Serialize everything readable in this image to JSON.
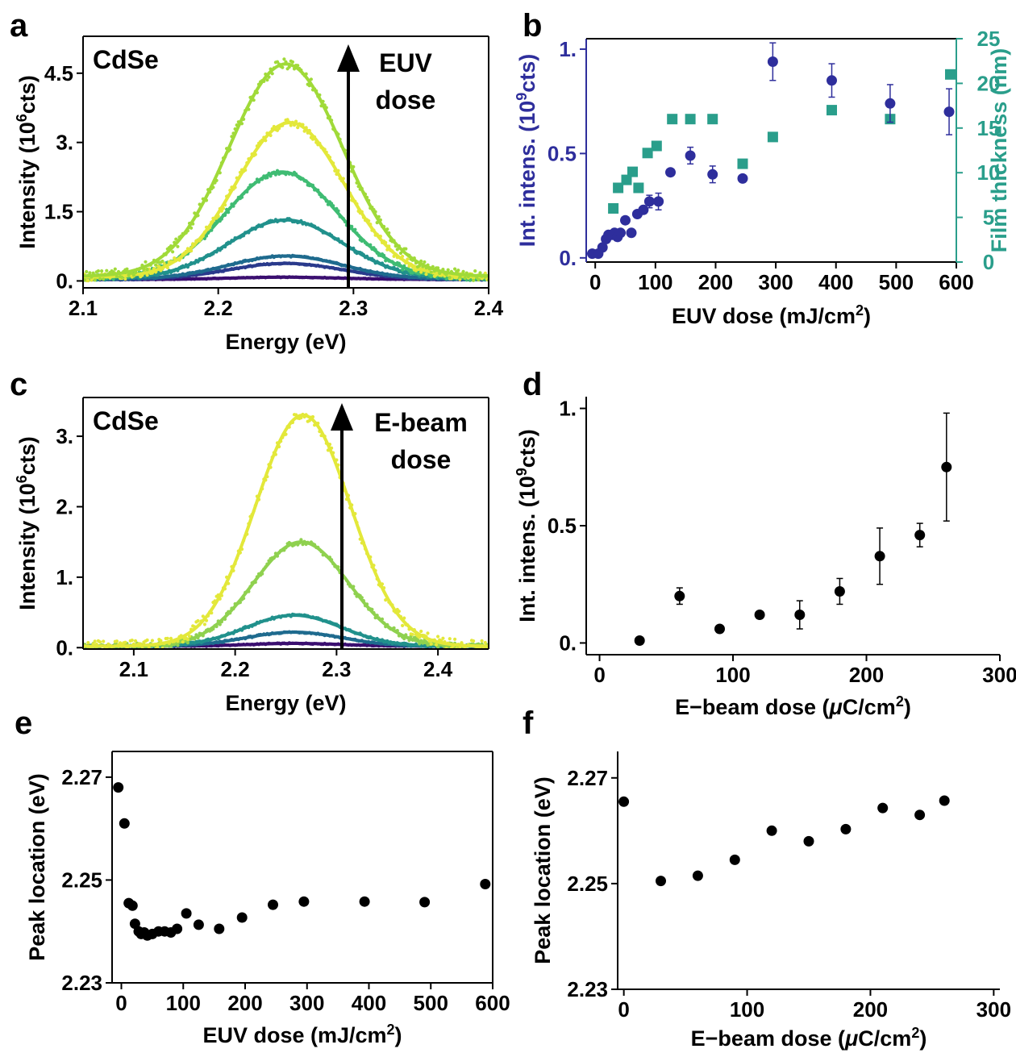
{
  "colors": {
    "axis": "#000000",
    "blue_series": "#2e2e9c",
    "teal_series": "#2a9e8b",
    "black_series": "#000000",
    "spectra_palette": [
      "#3b0f70",
      "#2a3a8c",
      "#1f6b8e",
      "#21918c",
      "#3fbc73",
      "#a0da39",
      "#e3e83a",
      "#8fd14f"
    ]
  },
  "panels": {
    "a": "a",
    "b": "b",
    "c": "c",
    "d": "d",
    "e": "e",
    "f": "f"
  },
  "chart_data": [
    {
      "id": "a",
      "type": "line",
      "annotation_material": "CdSe",
      "annotation_arrow": [
        "EUV",
        "dose"
      ],
      "xlabel": "Energy (eV)",
      "ylabel": "Intensity (10^6cts)",
      "ylabel_parts": {
        "pre": "Intensity (10",
        "sup": "6",
        "post": "cts)"
      },
      "xlim": [
        2.1,
        2.4
      ],
      "ylim": [
        -0.15,
        5.3
      ],
      "xticks": [
        2.1,
        2.2,
        2.3,
        2.4
      ],
      "xtick_labels": [
        "2.1",
        "2.2",
        "2.3",
        "2.4"
      ],
      "yticks": [
        0,
        1.5,
        3,
        4.5
      ],
      "ytick_labels": [
        "0.",
        "1.5",
        "3.",
        "4.5"
      ],
      "series": [
        {
          "color": "#3b0f70",
          "amplitude": 0.05,
          "center": 2.25,
          "sigma": 0.042,
          "baseline": 0.03
        },
        {
          "color": "#2a3a8c",
          "amplitude": 0.35,
          "center": 2.25,
          "sigma": 0.042,
          "baseline": 0.03
        },
        {
          "color": "#1f6b8e",
          "amplitude": 0.5,
          "center": 2.25,
          "sigma": 0.042,
          "baseline": 0.04
        },
        {
          "color": "#21918c",
          "amplitude": 1.27,
          "center": 2.25,
          "sigma": 0.042,
          "baseline": 0.05
        },
        {
          "color": "#3fbc73",
          "amplitude": 2.3,
          "center": 2.247,
          "sigma": 0.042,
          "baseline": 0.06
        },
        {
          "color": "#e3e83a",
          "amplitude": 3.35,
          "center": 2.253,
          "sigma": 0.04,
          "baseline": 0.08
        },
        {
          "color": "#a0da39",
          "amplitude": 4.6,
          "center": 2.25,
          "sigma": 0.042,
          "baseline": 0.1
        }
      ]
    },
    {
      "id": "b",
      "type": "scatter",
      "xlabel": "EUV dose (mJ/cm^2)",
      "xlabel_parts": {
        "pre": "EUV dose (mJ/cm",
        "sup": "2",
        "post": ")"
      },
      "ylabel": "Int. intens. (10^9cts)",
      "ylabel_parts": {
        "pre": "Int. intens. (10",
        "sup": "9",
        "post": "cts)"
      },
      "y2label": "Film thickness (nm)",
      "xlim": [
        -15,
        600
      ],
      "ylim": [
        -0.02,
        1.05
      ],
      "y2lim": [
        0,
        25
      ],
      "xticks": [
        0,
        100,
        200,
        300,
        400,
        500,
        600
      ],
      "xtick_labels": [
        "0",
        "100",
        "200",
        "300",
        "400",
        "500",
        "600"
      ],
      "yticks": [
        0,
        0.5,
        1
      ],
      "ytick_labels": [
        "0.",
        "0.5",
        "1."
      ],
      "y2ticks": [
        0,
        5,
        10,
        15,
        20,
        25
      ],
      "y2tick_labels": [
        "0",
        "5",
        "10",
        "15",
        "20",
        "25"
      ],
      "intensity": {
        "x": [
          -5,
          5,
          12,
          18,
          22,
          28,
          32,
          37,
          42,
          50,
          60,
          70,
          80,
          90,
          105,
          125,
          158,
          195,
          245,
          295,
          393,
          490,
          588
        ],
        "y": [
          0.02,
          0.02,
          0.05,
          0.09,
          0.11,
          0.11,
          0.12,
          0.1,
          0.12,
          0.18,
          0.12,
          0.21,
          0.23,
          0.27,
          0.27,
          0.41,
          0.49,
          0.4,
          0.38,
          0.94,
          0.85,
          0.74,
          0.7
        ],
        "err": [
          0,
          0,
          0,
          0,
          0,
          0,
          0,
          0,
          0,
          0,
          0,
          0,
          0,
          0.03,
          0.04,
          0,
          0.04,
          0.04,
          0,
          0.09,
          0.08,
          0.09,
          0.11
        ]
      },
      "thickness": {
        "x": [
          30,
          38,
          52,
          62,
          72,
          87,
          102,
          128,
          158,
          195,
          245,
          295,
          393,
          490,
          590
        ],
        "y": [
          6,
          8.3,
          9.2,
          10.1,
          8.3,
          12.2,
          13,
          16,
          16,
          16,
          11,
          14,
          17,
          16,
          21
        ]
      }
    },
    {
      "id": "c",
      "type": "line",
      "annotation_material": "CdSe",
      "annotation_arrow": [
        "E-beam",
        "dose"
      ],
      "xlabel": "Energy (eV)",
      "ylabel": "Intensity (10^6cts)",
      "ylabel_parts": {
        "pre": "Intensity (10",
        "sup": "6",
        "post": "cts)"
      },
      "xlim": [
        2.05,
        2.45
      ],
      "ylim": [
        -0.02,
        3.55
      ],
      "xticks": [
        2.1,
        2.2,
        2.3,
        2.4
      ],
      "xtick_labels": [
        "2.1",
        "2.2",
        "2.3",
        "2.4"
      ],
      "yticks": [
        0,
        1,
        2,
        3
      ],
      "ytick_labels": [
        "0.",
        "1.",
        "2.",
        "3."
      ],
      "series": [
        {
          "color": "#3b0f70",
          "amplitude": 0.04,
          "center": 2.26,
          "sigma": 0.047,
          "baseline": 0.02
        },
        {
          "color": "#1f6b8e",
          "amplitude": 0.2,
          "center": 2.258,
          "sigma": 0.047,
          "baseline": 0.02
        },
        {
          "color": "#21918c",
          "amplitude": 0.44,
          "center": 2.258,
          "sigma": 0.047,
          "baseline": 0.02
        },
        {
          "color": "#8fd14f",
          "amplitude": 1.48,
          "center": 2.265,
          "sigma": 0.047,
          "baseline": 0.02
        },
        {
          "color": "#e3e83a",
          "amplitude": 3.28,
          "center": 2.267,
          "sigma": 0.047,
          "baseline": 0.02
        }
      ]
    },
    {
      "id": "d",
      "type": "scatter",
      "xlabel": "E-beam dose (μC/cm^2)",
      "xlabel_parts": {
        "pre": "E−beam dose (",
        "mu": "μ",
        "mid": "C/cm",
        "sup": "2",
        "post": ")"
      },
      "ylabel": "Int. intens. (10^9cts)",
      "ylabel_parts": {
        "pre": "Int. intens. (10",
        "sup": "9",
        "post": "cts)"
      },
      "xlim": [
        -10,
        300
      ],
      "ylim": [
        -0.05,
        1.05
      ],
      "xticks": [
        0,
        100,
        200,
        300
      ],
      "xtick_labels": [
        "0",
        "100",
        "200",
        "300"
      ],
      "yticks": [
        0,
        0.5,
        1
      ],
      "ytick_labels": [
        "0.",
        "0.5",
        "1."
      ],
      "x": [
        30,
        60,
        90,
        120,
        150,
        180,
        210,
        240,
        260
      ],
      "y": [
        0.01,
        0.2,
        0.06,
        0.12,
        0.12,
        0.22,
        0.37,
        0.46,
        0.75
      ],
      "err": [
        0,
        0.035,
        0,
        0.015,
        0.06,
        0.055,
        0.12,
        0.05,
        0.23
      ]
    },
    {
      "id": "e",
      "type": "scatter",
      "xlabel": "EUV dose (mJ/cm^2)",
      "xlabel_parts": {
        "pre": "EUV dose (mJ/cm",
        "sup": "2",
        "post": ")"
      },
      "ylabel": "Peak location (eV)",
      "xlim": [
        -15,
        600
      ],
      "ylim": [
        2.23,
        2.275
      ],
      "xticks": [
        0,
        100,
        200,
        300,
        400,
        500,
        600
      ],
      "xtick_labels": [
        "0",
        "100",
        "200",
        "300",
        "400",
        "500",
        "600"
      ],
      "yticks": [
        2.23,
        2.25,
        2.27
      ],
      "ytick_labels": [
        "2.23",
        "2.25",
        "2.27"
      ],
      "x": [
        -5,
        5,
        12,
        18,
        22,
        28,
        32,
        37,
        42,
        50,
        60,
        70,
        80,
        90,
        105,
        125,
        158,
        195,
        245,
        295,
        393,
        490,
        588
      ],
      "y": [
        2.268,
        2.261,
        2.2455,
        2.245,
        2.2415,
        2.24,
        2.2395,
        2.2398,
        2.2392,
        2.2395,
        2.24,
        2.24,
        2.2398,
        2.2405,
        2.2435,
        2.2413,
        2.2405,
        2.2427,
        2.2452,
        2.2458,
        2.2458,
        2.2457,
        2.2492
      ]
    },
    {
      "id": "f",
      "type": "scatter",
      "xlabel": "E-beam dose (μC/cm^2)",
      "xlabel_parts": {
        "pre": "E−beam dose (",
        "mu": "μ",
        "mid": "C/cm",
        "sup": "2",
        "post": ")"
      },
      "ylabel": "Peak location (eV)",
      "xlim": [
        -5,
        305
      ],
      "ylim": [
        2.23,
        2.275
      ],
      "xticks": [
        0,
        100,
        200,
        300
      ],
      "xtick_labels": [
        "0",
        "100",
        "200",
        "300"
      ],
      "yticks": [
        2.23,
        2.25,
        2.27
      ],
      "ytick_labels": [
        "2.23",
        "2.25",
        "2.27"
      ],
      "x": [
        0,
        30,
        60,
        90,
        120,
        150,
        180,
        210,
        240,
        260
      ],
      "y": [
        2.2655,
        2.2505,
        2.2515,
        2.2545,
        2.26,
        2.258,
        2.2603,
        2.2643,
        2.263,
        2.2657
      ]
    }
  ]
}
